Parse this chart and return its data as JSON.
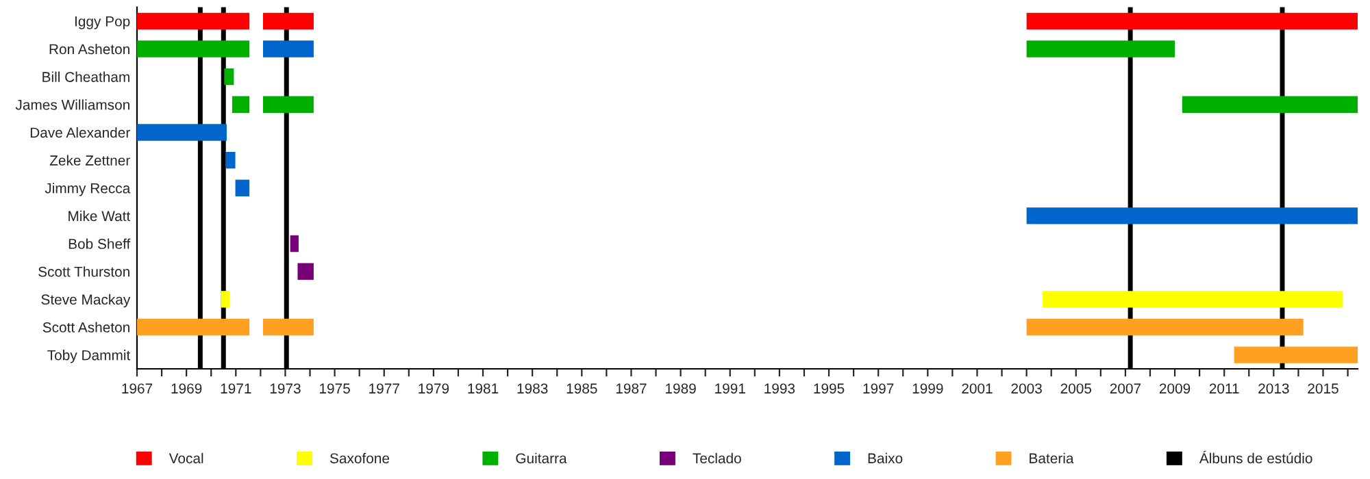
{
  "chart_data": {
    "type": "bar",
    "orientation": "horizontal",
    "categories": [
      "Iggy Pop",
      "Ron Asheton",
      "Bill Cheatham",
      "James Williamson",
      "Dave Alexander",
      "Zeke Zettner",
      "Jimmy Recca",
      "Mike Watt",
      "Bob Sheff",
      "Scott Thurston",
      "Steve Mackay",
      "Scott Asheton",
      "Toby Dammit"
    ],
    "series": [
      {
        "name": "Vocal",
        "color": "#ff0000",
        "values": [
          4.55,
          null,
          null,
          null,
          null,
          null,
          null,
          null,
          null,
          null,
          null,
          null,
          null
        ],
        "base": [
          1967,
          null,
          null,
          null,
          null,
          null,
          null,
          null,
          null,
          null,
          null,
          null,
          null
        ]
      },
      {
        "name": "Saxofone",
        "color": "#ffff00",
        "values": [
          null,
          null,
          null,
          null,
          null,
          null,
          null,
          null,
          null,
          null,
          0.35,
          null,
          null
        ],
        "base": [
          null,
          null,
          null,
          null,
          null,
          null,
          null,
          null,
          null,
          null,
          1970.4,
          null,
          null
        ]
      },
      {
        "name": "Guitarra",
        "color": "#00b000",
        "values": [
          null,
          4.55,
          0.39,
          0.7,
          null,
          null,
          null,
          null,
          null,
          null,
          null,
          null,
          null
        ],
        "base": [
          null,
          1967,
          1970.53,
          1970.85,
          null,
          null,
          null,
          null,
          null,
          null,
          null,
          null,
          null
        ]
      },
      {
        "name": "Teclado",
        "color": "#770077",
        "values": [
          null,
          null,
          null,
          null,
          null,
          null,
          null,
          null,
          0.34,
          0.65,
          null,
          null,
          null
        ],
        "base": [
          null,
          null,
          null,
          null,
          null,
          null,
          null,
          null,
          1973.2,
          1973.5,
          null,
          null,
          null
        ]
      },
      {
        "name": "Baixo",
        "color": "#0066cc",
        "values": [
          null,
          2.05,
          null,
          null,
          3.63,
          0.38,
          0.57,
          13.4,
          null,
          null,
          null,
          null,
          null
        ],
        "base": [
          null,
          1972.1,
          null,
          null,
          1967,
          1970.6,
          1970.98,
          2003,
          null,
          null,
          null,
          null,
          null
        ]
      },
      {
        "name": "Bateria",
        "color": "#ffa020",
        "values": [
          null,
          null,
          null,
          null,
          null,
          null,
          null,
          null,
          null,
          null,
          null,
          4.55,
          5.0
        ],
        "base": [
          null,
          null,
          null,
          null,
          null,
          null,
          null,
          null,
          null,
          null,
          null,
          1967,
          2011.4
        ]
      },
      {
        "color": "#ff0000",
        "values": [
          2.05,
          null,
          null,
          null,
          null,
          null,
          null,
          null,
          null,
          null,
          null,
          null,
          null
        ],
        "base": [
          1972.1,
          null,
          null,
          null,
          null,
          null,
          null,
          null,
          null,
          null,
          null,
          null,
          null
        ]
      },
      {
        "color": "#ff0000",
        "values": [
          13.4,
          null,
          null,
          null,
          null,
          null,
          null,
          null,
          null,
          null,
          null,
          null,
          null
        ],
        "base": [
          2003,
          null,
          null,
          null,
          null,
          null,
          null,
          null,
          null,
          null,
          null,
          null,
          null
        ]
      },
      {
        "color": "#ffff00",
        "values": [
          null,
          null,
          null,
          null,
          null,
          null,
          null,
          null,
          null,
          null,
          12.15,
          null,
          null
        ],
        "base": [
          null,
          null,
          null,
          null,
          null,
          null,
          null,
          null,
          null,
          null,
          2003.65,
          null,
          null
        ]
      },
      {
        "color": "#00b000",
        "values": [
          null,
          6.0,
          null,
          2.05,
          null,
          null,
          null,
          null,
          null,
          null,
          null,
          null,
          null
        ],
        "base": [
          null,
          2003,
          null,
          1972.1,
          null,
          null,
          null,
          null,
          null,
          null,
          null,
          null,
          null
        ]
      },
      {
        "color": "#00b000",
        "values": [
          null,
          null,
          null,
          7.1,
          null,
          null,
          null,
          null,
          null,
          null,
          null,
          null,
          null
        ],
        "base": [
          null,
          null,
          null,
          2009.3,
          null,
          null,
          null,
          null,
          null,
          null,
          null,
          null,
          null
        ]
      },
      {
        "color": "#ffa020",
        "values": [
          null,
          null,
          null,
          null,
          null,
          null,
          null,
          null,
          null,
          null,
          null,
          2.05,
          null
        ],
        "base": [
          null,
          null,
          null,
          null,
          null,
          null,
          null,
          null,
          null,
          null,
          null,
          1972.1,
          null
        ]
      },
      {
        "color": "#ffa020",
        "values": [
          null,
          null,
          null,
          null,
          null,
          null,
          null,
          null,
          null,
          null,
          null,
          11.2,
          null
        ],
        "base": [
          null,
          null,
          null,
          null,
          null,
          null,
          null,
          null,
          null,
          null,
          null,
          2003,
          null
        ]
      }
    ],
    "ref_lines": [
      {
        "axis": "x",
        "value": 1969.56,
        "color": "#000000",
        "label": "Álbuns de estúdio"
      },
      {
        "axis": "x",
        "value": 1970.5,
        "color": "#000000"
      },
      {
        "axis": "x",
        "value": 1973.05,
        "color": "#000000"
      },
      {
        "axis": "x",
        "value": 2007.2,
        "color": "#000000"
      },
      {
        "axis": "x",
        "value": 2013.35,
        "color": "#000000"
      }
    ],
    "xlim": [
      1967,
      2016.4
    ],
    "xticks": [
      1967,
      {
        "value": 1968,
        "label": null
      },
      1969,
      {
        "value": 1970,
        "label": null
      },
      1971,
      {
        "value": 1972,
        "label": null
      },
      1973,
      {
        "value": 1974,
        "label": null
      },
      1975,
      {
        "value": 1976,
        "label": null
      },
      1977,
      {
        "value": 1978,
        "label": null
      },
      1979,
      {
        "value": 1980,
        "label": null
      },
      1981,
      {
        "value": 1982,
        "label": null
      },
      1983,
      {
        "value": 1984,
        "label": null
      },
      1985,
      {
        "value": 1986,
        "label": null
      },
      1987,
      {
        "value": 1988,
        "label": null
      },
      1989,
      {
        "value": 1990,
        "label": null
      },
      1991,
      {
        "value": 1992,
        "label": null
      },
      1993,
      {
        "value": 1994,
        "label": null
      },
      1995,
      {
        "value": 1996,
        "label": null
      },
      1997,
      {
        "value": 1998,
        "label": null
      },
      1999,
      {
        "value": 2000,
        "label": null
      },
      2001,
      {
        "value": 2002,
        "label": null
      },
      2003,
      {
        "value": 2004,
        "label": null
      },
      2005,
      {
        "value": 2006,
        "label": null
      },
      2007,
      {
        "value": 2008,
        "label": null
      },
      2009,
      {
        "value": 2010,
        "label": null
      },
      2011,
      {
        "value": 2012,
        "label": null
      },
      2013,
      {
        "value": 2014,
        "label": null
      },
      2015,
      {
        "value": 2016,
        "label": null
      }
    ],
    "grid": false,
    "legend": "bottom"
  }
}
